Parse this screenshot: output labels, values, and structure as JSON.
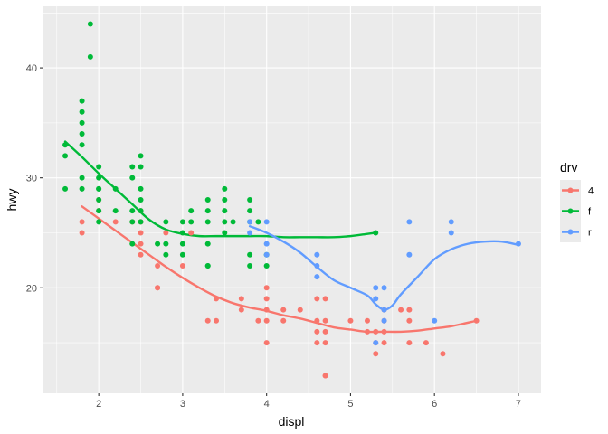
{
  "chart_data": {
    "type": "scatter",
    "xlabel": "displ",
    "ylabel": "hwy",
    "xlim": [
      1.33,
      7.27
    ],
    "ylim": [
      10.4,
      45.6
    ],
    "x_ticks": [
      2,
      3,
      4,
      5,
      6,
      7
    ],
    "x_tick_labels": [
      "2",
      "3",
      "4",
      "5",
      "6",
      "7"
    ],
    "y_ticks": [
      20,
      30,
      40
    ],
    "y_tick_labels": [
      "20",
      "30",
      "40"
    ],
    "grid": true,
    "background": "#ebebeb",
    "legend": {
      "title": "drv",
      "position": "right",
      "entries": [
        {
          "label": "4",
          "color": "#F8766D"
        },
        {
          "label": "f",
          "color": "#00BA38"
        },
        {
          "label": "r",
          "color": "#619CFF"
        }
      ]
    },
    "series": [
      {
        "name": "4",
        "color": "#F8766D",
        "points": [
          [
            1.8,
            26
          ],
          [
            1.8,
            25
          ],
          [
            2.0,
            28
          ],
          [
            2.0,
            27
          ],
          [
            2.2,
            26
          ],
          [
            2.4,
            26
          ],
          [
            2.5,
            27
          ],
          [
            2.5,
            25
          ],
          [
            2.5,
            24
          ],
          [
            2.5,
            23
          ],
          [
            2.5,
            26
          ],
          [
            2.7,
            20
          ],
          [
            2.7,
            20
          ],
          [
            2.7,
            22
          ],
          [
            2.8,
            25
          ],
          [
            3.0,
            22
          ],
          [
            3.1,
            25
          ],
          [
            3.3,
            17
          ],
          [
            3.4,
            19
          ],
          [
            3.4,
            17
          ],
          [
            3.7,
            19
          ],
          [
            3.7,
            18
          ],
          [
            3.9,
            17
          ],
          [
            4.0,
            20
          ],
          [
            4.0,
            19
          ],
          [
            4.0,
            18
          ],
          [
            4.0,
            17
          ],
          [
            4.0,
            15
          ],
          [
            4.2,
            18
          ],
          [
            4.2,
            17
          ],
          [
            4.4,
            18
          ],
          [
            4.6,
            19
          ],
          [
            4.6,
            17
          ],
          [
            4.6,
            16
          ],
          [
            4.6,
            15
          ],
          [
            4.7,
            19
          ],
          [
            4.7,
            17
          ],
          [
            4.7,
            16
          ],
          [
            4.7,
            15
          ],
          [
            4.7,
            12
          ],
          [
            4.7,
            12
          ],
          [
            5.0,
            17
          ],
          [
            5.2,
            17
          ],
          [
            5.2,
            16
          ],
          [
            5.3,
            16
          ],
          [
            5.3,
            15
          ],
          [
            5.3,
            14
          ],
          [
            5.4,
            18
          ],
          [
            5.4,
            17
          ],
          [
            5.4,
            16
          ],
          [
            5.4,
            15
          ],
          [
            5.6,
            18
          ],
          [
            5.7,
            18
          ],
          [
            5.7,
            17
          ],
          [
            5.7,
            15
          ],
          [
            5.9,
            15
          ],
          [
            6.1,
            14
          ],
          [
            6.5,
            17
          ]
        ],
        "smooth": [
          [
            1.8,
            27.4
          ],
          [
            2.0,
            26.3
          ],
          [
            2.2,
            25.2
          ],
          [
            2.4,
            24.1
          ],
          [
            2.6,
            23.0
          ],
          [
            2.8,
            21.9
          ],
          [
            3.0,
            20.9
          ],
          [
            3.2,
            20.0
          ],
          [
            3.4,
            19.2
          ],
          [
            3.6,
            18.6
          ],
          [
            3.8,
            18.2
          ],
          [
            4.0,
            17.9
          ],
          [
            4.2,
            17.5
          ],
          [
            4.4,
            17.2
          ],
          [
            4.6,
            16.8
          ],
          [
            4.8,
            16.4
          ],
          [
            5.0,
            16.2
          ],
          [
            5.2,
            16.0
          ],
          [
            5.4,
            16.0
          ],
          [
            5.6,
            16.0
          ],
          [
            5.8,
            16.1
          ],
          [
            6.0,
            16.3
          ],
          [
            6.2,
            16.5
          ],
          [
            6.5,
            17.0
          ]
        ]
      },
      {
        "name": "f",
        "color": "#00BA38",
        "points": [
          [
            1.6,
            33
          ],
          [
            1.6,
            32
          ],
          [
            1.6,
            29
          ],
          [
            1.8,
            37
          ],
          [
            1.8,
            36
          ],
          [
            1.8,
            35
          ],
          [
            1.8,
            34
          ],
          [
            1.8,
            33
          ],
          [
            1.8,
            30
          ],
          [
            1.8,
            29
          ],
          [
            1.9,
            44
          ],
          [
            1.9,
            41
          ],
          [
            2.0,
            31
          ],
          [
            2.0,
            30
          ],
          [
            2.0,
            29
          ],
          [
            2.0,
            29
          ],
          [
            2.0,
            28
          ],
          [
            2.0,
            27
          ],
          [
            2.0,
            26
          ],
          [
            2.2,
            29
          ],
          [
            2.2,
            27
          ],
          [
            2.4,
            31
          ],
          [
            2.4,
            30
          ],
          [
            2.4,
            27
          ],
          [
            2.4,
            26
          ],
          [
            2.4,
            24
          ],
          [
            2.5,
            32
          ],
          [
            2.5,
            31
          ],
          [
            2.5,
            29
          ],
          [
            2.5,
            28
          ],
          [
            2.5,
            27
          ],
          [
            2.5,
            26
          ],
          [
            2.7,
            24
          ],
          [
            2.8,
            26
          ],
          [
            2.8,
            24
          ],
          [
            2.8,
            23
          ],
          [
            3.0,
            26
          ],
          [
            3.0,
            25
          ],
          [
            3.0,
            24
          ],
          [
            3.0,
            23
          ],
          [
            3.1,
            27
          ],
          [
            3.1,
            26
          ],
          [
            3.3,
            28
          ],
          [
            3.3,
            27
          ],
          [
            3.3,
            26
          ],
          [
            3.3,
            24
          ],
          [
            3.3,
            22
          ],
          [
            3.3,
            22
          ],
          [
            3.5,
            29
          ],
          [
            3.5,
            28
          ],
          [
            3.5,
            27
          ],
          [
            3.5,
            26
          ],
          [
            3.5,
            25
          ],
          [
            3.6,
            26
          ],
          [
            3.8,
            28
          ],
          [
            3.8,
            27
          ],
          [
            3.8,
            26
          ],
          [
            3.8,
            23
          ],
          [
            3.8,
            22
          ],
          [
            3.9,
            26
          ],
          [
            4.0,
            23
          ],
          [
            4.0,
            22
          ],
          [
            5.3,
            25
          ]
        ],
        "smooth": [
          [
            1.6,
            33.3
          ],
          [
            1.8,
            31.9
          ],
          [
            2.0,
            30.4
          ],
          [
            2.2,
            29.0
          ],
          [
            2.4,
            27.6
          ],
          [
            2.6,
            26.2
          ],
          [
            2.8,
            25.3
          ],
          [
            3.0,
            24.9
          ],
          [
            3.2,
            24.7
          ],
          [
            3.4,
            24.7
          ],
          [
            3.6,
            24.7
          ],
          [
            3.8,
            24.7
          ],
          [
            4.0,
            24.7
          ],
          [
            4.2,
            24.6
          ],
          [
            4.4,
            24.6
          ],
          [
            4.6,
            24.6
          ],
          [
            4.8,
            24.6
          ],
          [
            5.0,
            24.7
          ],
          [
            5.2,
            24.9
          ],
          [
            5.3,
            25.0
          ]
        ]
      },
      {
        "name": "r",
        "color": "#619CFF",
        "points": [
          [
            3.8,
            26
          ],
          [
            3.8,
            25
          ],
          [
            4.0,
            26
          ],
          [
            4.0,
            24
          ],
          [
            4.0,
            23
          ],
          [
            4.6,
            23
          ],
          [
            4.6,
            22
          ],
          [
            4.6,
            21
          ],
          [
            5.3,
            20
          ],
          [
            5.3,
            19
          ],
          [
            5.3,
            15
          ],
          [
            5.4,
            20
          ],
          [
            5.4,
            18
          ],
          [
            5.4,
            17
          ],
          [
            5.7,
            26
          ],
          [
            5.7,
            23
          ],
          [
            6.0,
            17
          ],
          [
            6.2,
            26
          ],
          [
            6.2,
            25
          ],
          [
            7.0,
            24
          ]
        ],
        "smooth": [
          [
            3.8,
            25.6
          ],
          [
            4.0,
            25.0
          ],
          [
            4.2,
            24.2
          ],
          [
            4.4,
            23.2
          ],
          [
            4.6,
            21.9
          ],
          [
            4.8,
            20.7
          ],
          [
            5.0,
            20.0
          ],
          [
            5.2,
            19.3
          ],
          [
            5.3,
            18.5
          ],
          [
            5.4,
            18.0
          ],
          [
            5.5,
            18.4
          ],
          [
            5.6,
            19.4
          ],
          [
            5.8,
            21.0
          ],
          [
            6.0,
            22.6
          ],
          [
            6.2,
            23.5
          ],
          [
            6.4,
            24.0
          ],
          [
            6.6,
            24.2
          ],
          [
            6.8,
            24.2
          ],
          [
            7.0,
            23.9
          ]
        ]
      }
    ]
  }
}
